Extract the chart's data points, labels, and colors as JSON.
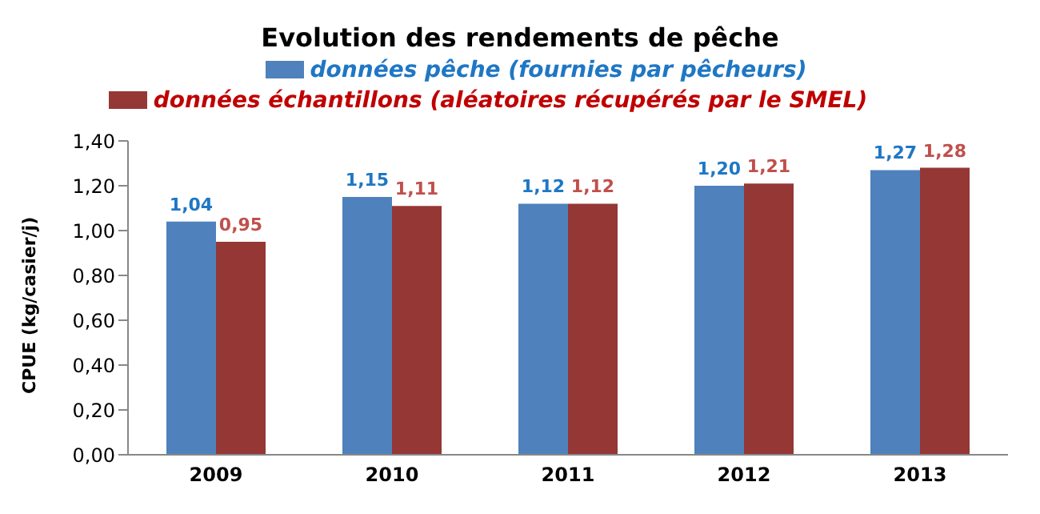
{
  "chart_data": {
    "type": "bar",
    "title": "Evolution des rendements de pêche",
    "ylabel": "CPUE (kg/casier/j)",
    "categories": [
      "2009",
      "2010",
      "2011",
      "2012",
      "2013"
    ],
    "series": [
      {
        "name": "données pêche (fournies par pêcheurs)",
        "color": "#4f81bd",
        "values": [
          1.04,
          1.15,
          1.12,
          1.2,
          1.27
        ],
        "value_labels": [
          "1,04",
          "1,15",
          "1,12",
          "1,20",
          "1,27"
        ]
      },
      {
        "name": "données échantillons (aléatoires récupérés par le SMEL)",
        "color": "#953735",
        "values": [
          0.95,
          1.11,
          1.12,
          1.21,
          1.28
        ],
        "value_labels": [
          "0,95",
          "1,11",
          "1,12",
          "1,21",
          "1,28"
        ]
      }
    ],
    "ylim": [
      0,
      1.4
    ],
    "yticks": [
      {
        "value": 0,
        "label": "0,00"
      },
      {
        "value": 0.2,
        "label": "0,20"
      },
      {
        "value": 0.4,
        "label": "0,40"
      },
      {
        "value": 0.6,
        "label": "0,60"
      },
      {
        "value": 0.8,
        "label": "0,80"
      },
      {
        "value": 1,
        "label": "1,00"
      },
      {
        "value": 1.2,
        "label": "1,20"
      },
      {
        "value": 1.4,
        "label": "1,40"
      }
    ],
    "grid": false,
    "legend": "top"
  }
}
